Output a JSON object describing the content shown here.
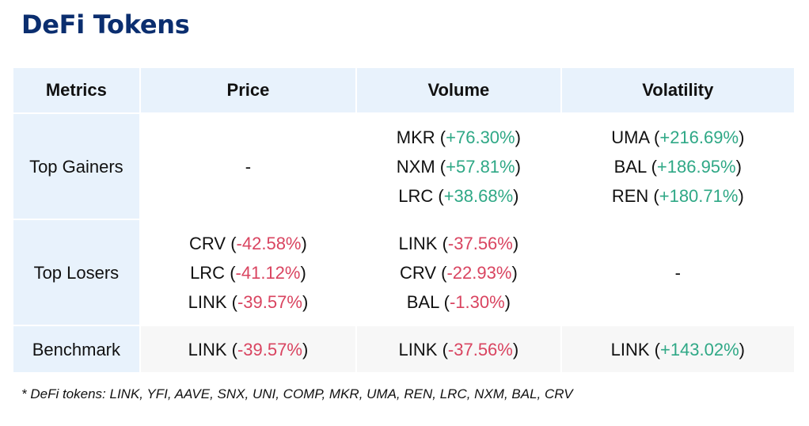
{
  "title": "DeFi Tokens",
  "colors": {
    "title": "#0b2e6f",
    "header_bg": "#e8f2fc",
    "positive": "#2fa886",
    "negative": "#d94460"
  },
  "headers": [
    "Metrics",
    "Price",
    "Volume",
    "Volatility"
  ],
  "rows": [
    {
      "label": "Top Gainers",
      "price": {
        "dash": "-"
      },
      "volume": [
        {
          "token": "MKR",
          "change": "+76.30%"
        },
        {
          "token": "NXM",
          "change": "+57.81%"
        },
        {
          "token": "LRC",
          "change": "+38.68%"
        }
      ],
      "volatility": [
        {
          "token": "UMA",
          "change": "+216.69%"
        },
        {
          "token": "BAL",
          "change": "+186.95%"
        },
        {
          "token": "REN",
          "change": "+180.71%"
        }
      ]
    },
    {
      "label": "Top Losers",
      "price": [
        {
          "token": "CRV",
          "change": "-42.58%"
        },
        {
          "token": "LRC",
          "change": "-41.12%"
        },
        {
          "token": "LINK",
          "change": "-39.57%"
        }
      ],
      "volume": [
        {
          "token": "LINK",
          "change": "-37.56%"
        },
        {
          "token": "CRV",
          "change": "-22.93%"
        },
        {
          "token": "BAL",
          "change": "-1.30%"
        }
      ],
      "volatility": {
        "dash": "-"
      }
    },
    {
      "label": "Benchmark",
      "price": [
        {
          "token": "LINK",
          "change": "-39.57%"
        }
      ],
      "volume": [
        {
          "token": "LINK",
          "change": "-37.56%"
        }
      ],
      "volatility": [
        {
          "token": "LINK",
          "change": "+143.02%"
        }
      ]
    }
  ],
  "footnote": "* DeFi tokens: LINK, YFI, AAVE, SNX, UNI, COMP, MKR, UMA, REN, LRC, NXM, BAL, CRV"
}
